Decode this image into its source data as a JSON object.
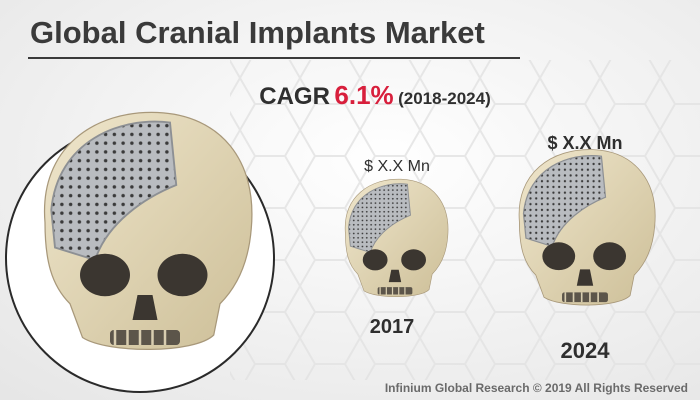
{
  "header": {
    "title": "Global Cranial Implants Market"
  },
  "cagr": {
    "label": "CAGR",
    "value": "6.1%",
    "period": "(2018-2024)"
  },
  "items": [
    {
      "value_label": "$ X.X Mn",
      "year": "2017"
    },
    {
      "value_label": "$ X.X Mn",
      "year": "2024"
    }
  ],
  "footer": "Infinium Global Research © 2019 All Rights Reserved"
}
